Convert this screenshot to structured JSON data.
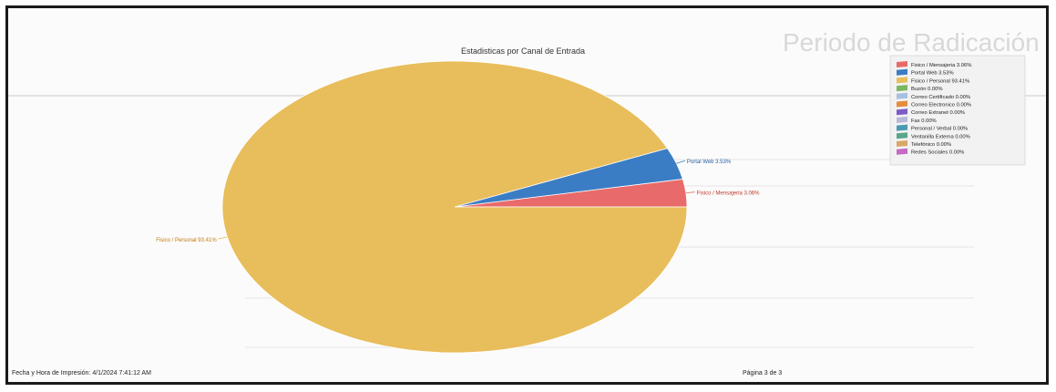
{
  "background_text": {
    "heading": "Periodo de Radicación y Atención de las Solicitudes."
  },
  "footer": {
    "print_datetime": "Fecha y Hora de Impresión: 4/1/2024 7:41:12 AM",
    "page": "Página 3 de 3"
  },
  "chart_data": {
    "type": "pie",
    "title": "Estadisticas por Canal de Entrada",
    "legend_position": "top-right",
    "slices": [
      {
        "label": "Fisico / Mensajeria 3.06%",
        "value": 3.06,
        "color": "#e96a6a",
        "callout": "Fisico / Mensajeria 3.06%"
      },
      {
        "label": "Portal Web 3.53%",
        "value": 3.53,
        "color": "#3b7dc4",
        "callout": "Portal Web 3.53%"
      },
      {
        "label": "Fisico / Personal 93.41%",
        "value": 93.41,
        "color": "#e8bd5b",
        "callout": "Fisico / Personal 93.41%"
      },
      {
        "label": "Buzón 0.00%",
        "value": 0,
        "color": "#7bb661"
      },
      {
        "label": "Correo Certificado 0.00%",
        "value": 0,
        "color": "#a8c0e0"
      },
      {
        "label": "Correo Electronico 0.00%",
        "value": 0,
        "color": "#e58c3d"
      },
      {
        "label": "Correo Extranet 0.00%",
        "value": 0,
        "color": "#7d5cc6"
      },
      {
        "label": "Fax 0.00%",
        "value": 0,
        "color": "#b8b8d8"
      },
      {
        "label": "Personal / Verbal 0.00%",
        "value": 0,
        "color": "#4a9ab5"
      },
      {
        "label": "Ventanilla Externa 0.00%",
        "value": 0,
        "color": "#5aa68a"
      },
      {
        "label": "Telefónico 0.00%",
        "value": 0,
        "color": "#d9a66a"
      },
      {
        "label": "Redes Sociales 0.00%",
        "value": 0,
        "color": "#c46bc4"
      }
    ]
  }
}
